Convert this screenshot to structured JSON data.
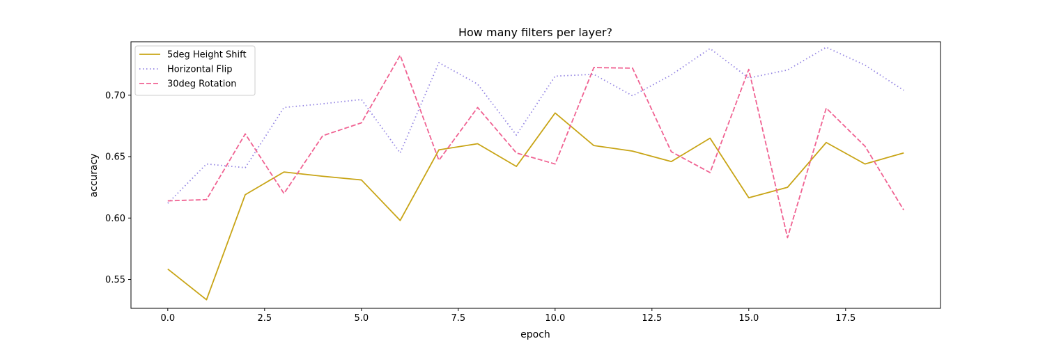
{
  "chart_data": {
    "type": "line",
    "title": "How many filters per layer?",
    "xlabel": "epoch",
    "ylabel": "accuracy",
    "xlim": [
      -0.95,
      19.95
    ],
    "ylim": [
      0.5265,
      0.7435
    ],
    "xticks": [
      0.0,
      2.5,
      5.0,
      7.5,
      10.0,
      12.5,
      15.0,
      17.5
    ],
    "xtick_labels": [
      "0.0",
      "2.5",
      "5.0",
      "7.5",
      "10.0",
      "12.5",
      "15.0",
      "17.5"
    ],
    "yticks": [
      0.55,
      0.6,
      0.65,
      0.7
    ],
    "ytick_labels": [
      "0.55",
      "0.60",
      "0.65",
      "0.70"
    ],
    "grid": false,
    "legend_position": "top-left",
    "x": [
      0,
      1,
      2,
      3,
      4,
      5,
      6,
      7,
      8,
      9,
      10,
      11,
      12,
      13,
      14,
      15,
      16,
      17,
      18,
      19
    ],
    "series": [
      {
        "name": "5deg Height Shift",
        "color": "#c8a415",
        "dash": "solid",
        "values": [
          0.5585,
          0.5335,
          0.619,
          0.6375,
          0.634,
          0.631,
          0.598,
          0.6555,
          0.6605,
          0.642,
          0.6855,
          0.659,
          0.6545,
          0.646,
          0.665,
          0.6165,
          0.625,
          0.6615,
          0.644,
          0.653
        ]
      },
      {
        "name": "Horizontal Flip",
        "color": "#9384e2",
        "dash": "dotted",
        "values": [
          0.612,
          0.644,
          0.641,
          0.69,
          0.693,
          0.6965,
          0.653,
          0.7265,
          0.709,
          0.6675,
          0.7155,
          0.717,
          0.6995,
          0.7165,
          0.738,
          0.714,
          0.7205,
          0.739,
          0.7245,
          0.704
        ]
      },
      {
        "name": "30deg Rotation",
        "color": "#f06292",
        "dash": "dashed",
        "values": [
          0.614,
          0.615,
          0.6685,
          0.62,
          0.667,
          0.6775,
          0.7325,
          0.647,
          0.69,
          0.653,
          0.644,
          0.7225,
          0.722,
          0.654,
          0.637,
          0.721,
          0.584,
          0.6895,
          0.6585,
          0.6065
        ]
      }
    ]
  }
}
